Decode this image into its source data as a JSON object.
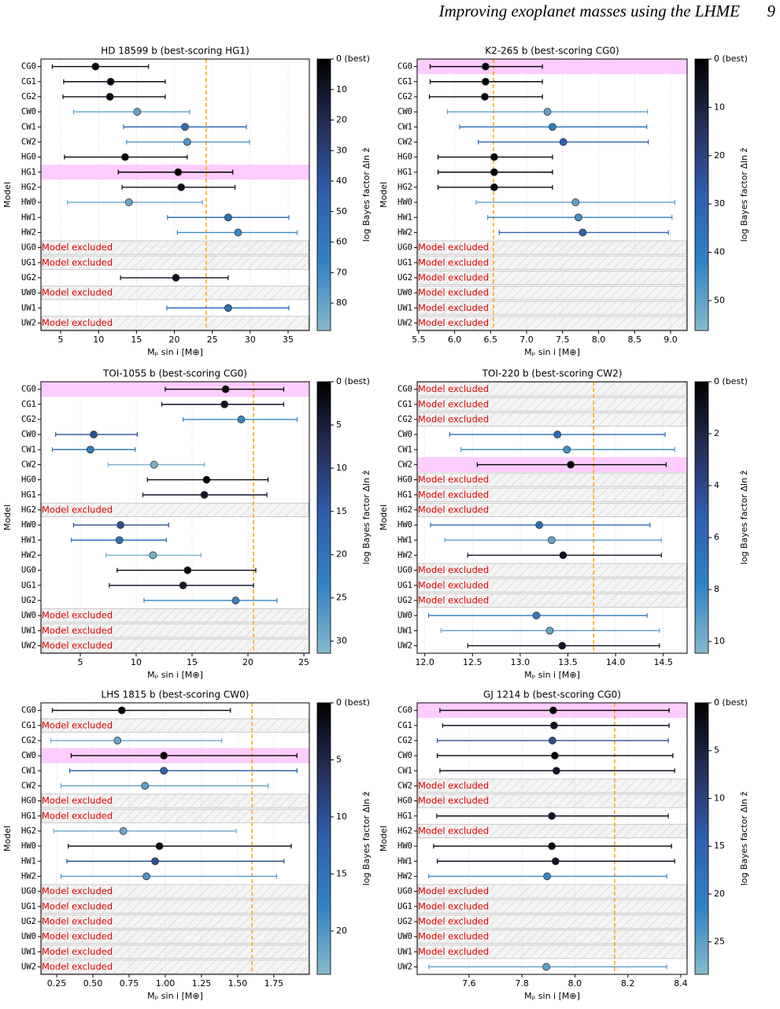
{
  "page_header": {
    "title": "Improving exoplanet masses using the LHME",
    "page_number": "9"
  },
  "chart_data": [
    {
      "type": "errorbar",
      "title": "HD 18599 b (best-scoring HG1)",
      "xlabel": "Mₚ sin i [M⊕]",
      "ylabel": "Model",
      "categories": [
        "CG0",
        "CG1",
        "CG2",
        "CW0",
        "CW1",
        "CW2",
        "HG0",
        "HG1",
        "HG2",
        "HW0",
        "HW1",
        "HW2",
        "UG0",
        "UG1",
        "UG2",
        "UW0",
        "UW1",
        "UW2"
      ],
      "values": [
        9.6,
        11.6,
        11.5,
        15.1,
        21.4,
        21.7,
        13.5,
        20.5,
        20.9,
        14.0,
        27.1,
        28.4,
        null,
        null,
        20.2,
        null,
        27.1,
        null
      ],
      "lower": [
        3.9,
        5.4,
        5.3,
        6.7,
        13.3,
        13.7,
        5.5,
        12.6,
        13.1,
        5.9,
        19.1,
        20.4,
        null,
        null,
        12.9,
        null,
        19.0,
        null
      ],
      "upper": [
        16.6,
        18.8,
        18.8,
        22.0,
        29.5,
        29.9,
        21.7,
        27.7,
        28.0,
        23.7,
        35.1,
        36.2,
        null,
        null,
        27.1,
        null,
        35.1,
        null
      ],
      "bayes": [
        3,
        5,
        5,
        80,
        55,
        75,
        3,
        0,
        5,
        82,
        55,
        70,
        null,
        null,
        8,
        null,
        55,
        null
      ],
      "excluded_label": "Model excluded",
      "best_index": 7,
      "reference": 24.2,
      "xlim": [
        2.4,
        37.8
      ],
      "xticks": [
        5,
        10,
        15,
        20,
        25,
        30,
        35
      ],
      "grid": true,
      "clim": [
        0,
        89
      ],
      "cticks": [
        {
          "value": 0,
          "label": "0 (best)"
        },
        10,
        20,
        30,
        40,
        50,
        60,
        70,
        80
      ],
      "clabel": "log Bayes factor Δln ẑ",
      "colormap": [
        "#000000",
        "#252f5a",
        "#2f5fb0",
        "#3082c4",
        "#86b9cc"
      ],
      "highlight_color": "#ffccff",
      "reference_color": "#ffa500"
    },
    {
      "type": "errorbar",
      "title": "K2-265 b (best-scoring CG0)",
      "xlabel": "Mₚ sin i [M⊕]",
      "ylabel": "Model",
      "categories": [
        "CG0",
        "CG1",
        "CG2",
        "CW0",
        "CW1",
        "CW2",
        "HG0",
        "HG1",
        "HG2",
        "HW0",
        "HW1",
        "HW2",
        "UG0",
        "UG1",
        "UG2",
        "UW0",
        "UW1",
        "UW2"
      ],
      "values": [
        6.43,
        6.43,
        6.42,
        7.29,
        7.36,
        7.51,
        6.55,
        6.55,
        6.55,
        7.68,
        7.72,
        7.78,
        null,
        null,
        null,
        null,
        null,
        null
      ],
      "lower": [
        5.66,
        5.66,
        5.65,
        5.9,
        6.07,
        6.33,
        5.77,
        5.77,
        5.77,
        6.3,
        6.46,
        6.62,
        null,
        null,
        null,
        null,
        null,
        null
      ],
      "upper": [
        7.22,
        7.22,
        7.22,
        8.68,
        8.67,
        8.69,
        7.36,
        7.36,
        7.36,
        9.06,
        9.02,
        8.97,
        null,
        null,
        null,
        null,
        null,
        null
      ],
      "bayes": [
        0,
        2,
        2,
        50,
        40,
        30,
        1,
        1,
        1,
        50,
        45,
        30,
        null,
        null,
        null,
        null,
        null,
        null
      ],
      "excluded_label": "Model excluded",
      "best_index": 0,
      "reference": 6.54,
      "xlim": [
        5.48,
        9.23
      ],
      "xticks": [
        5.5,
        {
          "value": 6,
          "label": "6.0"
        },
        6.5,
        {
          "value": 7,
          "label": "7.0"
        },
        7.5,
        {
          "value": 8,
          "label": "8.0"
        },
        8.5,
        {
          "value": 9,
          "label": "9.0"
        }
      ],
      "grid": true,
      "clim": [
        0,
        56.2
      ],
      "cticks": [
        {
          "value": 0,
          "label": "0 (best)"
        },
        10,
        20,
        30,
        40,
        50
      ],
      "clabel": "log Bayes factor Δln ẑ",
      "colormap": [
        "#000000",
        "#252f5a",
        "#2f5fb0",
        "#3082c4",
        "#86b9cc"
      ],
      "highlight_color": "#ffccff",
      "reference_color": "#ffa500"
    },
    {
      "type": "errorbar",
      "title": "TOI-1055 b (best-scoring CG0)",
      "xlabel": "Mₚ sin i [M⊕]",
      "ylabel": "Model",
      "categories": [
        "CG0",
        "CG1",
        "CG2",
        "CW0",
        "CW1",
        "CW2",
        "HG0",
        "HG1",
        "HG2",
        "HW0",
        "HW1",
        "HW2",
        "UG0",
        "UG1",
        "UG2",
        "UW0",
        "UW1",
        "UW2"
      ],
      "values": [
        18.0,
        17.9,
        19.4,
        6.2,
        5.9,
        11.6,
        16.3,
        16.1,
        null,
        8.6,
        8.5,
        11.5,
        14.6,
        14.2,
        18.9,
        null,
        null,
        null
      ],
      "lower": [
        12.6,
        12.3,
        14.2,
        2.8,
        2.5,
        7.5,
        11.0,
        10.6,
        null,
        4.4,
        4.2,
        7.3,
        8.3,
        7.6,
        10.7,
        null,
        null,
        null
      ],
      "upper": [
        23.2,
        23.2,
        24.4,
        10.1,
        9.9,
        16.1,
        21.8,
        21.7,
        null,
        12.9,
        12.7,
        15.8,
        20.7,
        20.5,
        22.6,
        null,
        null,
        null
      ],
      "bayes": [
        0,
        3,
        24,
        13,
        22,
        30,
        1,
        4,
        null,
        13,
        20,
        30,
        1,
        4,
        24,
        null,
        null,
        null
      ],
      "excluded_label": "Model excluded",
      "best_index": 0,
      "reference": 20.5,
      "xlim": [
        1.48,
        25.49
      ],
      "xticks": [
        5,
        10,
        15,
        20,
        25
      ],
      "grid": true,
      "clim": [
        0,
        31.4
      ],
      "cticks": [
        {
          "value": 0,
          "label": "0 (best)"
        },
        5,
        10,
        15,
        20,
        25,
        30
      ],
      "clabel": "log Bayes factor Δln ẑ",
      "colormap": [
        "#000000",
        "#252f5a",
        "#2f5fb0",
        "#3082c4",
        "#86b9cc"
      ],
      "highlight_color": "#ffccff",
      "reference_color": "#ffa500"
    },
    {
      "type": "errorbar",
      "title": "TOI-220 b (best-scoring CW2)",
      "xlabel": "Mₚ sin i [M⊕]",
      "ylabel": "Model",
      "categories": [
        "CG0",
        "CG1",
        "CG2",
        "CW0",
        "CW1",
        "CW2",
        "HG0",
        "HG1",
        "HG2",
        "HW0",
        "HW1",
        "HW2",
        "UG0",
        "UG1",
        "UG2",
        "UW0",
        "UW1",
        "UW2"
      ],
      "values": [
        null,
        null,
        null,
        13.39,
        13.49,
        13.53,
        null,
        null,
        null,
        13.2,
        13.33,
        13.45,
        null,
        null,
        null,
        13.17,
        13.31,
        13.44
      ],
      "lower": [
        null,
        null,
        null,
        12.26,
        12.38,
        12.55,
        null,
        null,
        null,
        12.06,
        12.21,
        12.45,
        null,
        null,
        null,
        12.04,
        12.17,
        12.45
      ],
      "upper": [
        null,
        null,
        null,
        14.52,
        14.62,
        14.53,
        null,
        null,
        null,
        14.36,
        14.48,
        14.48,
        null,
        null,
        null,
        14.33,
        14.46,
        14.46
      ],
      "bayes": [
        null,
        null,
        null,
        6,
        8.5,
        0,
        null,
        null,
        null,
        6,
        9.5,
        1,
        null,
        null,
        null,
        7,
        9.5,
        1
      ],
      "excluded_label": "Model excluded",
      "best_index": 5,
      "reference": 13.77,
      "xlim": [
        11.92,
        14.75
      ],
      "xticks": [
        {
          "value": 12,
          "label": "12.0"
        },
        12.5,
        {
          "value": 13,
          "label": "13.0"
        },
        13.5,
        {
          "value": 14,
          "label": "14.0"
        },
        14.5
      ],
      "grid": true,
      "clim": [
        0,
        10.45
      ],
      "cticks": [
        {
          "value": 0,
          "label": "0 (best)"
        },
        2,
        4,
        6,
        8,
        10
      ],
      "clabel": "log Bayes factor Δln ẑ",
      "colormap": [
        "#000000",
        "#252f5a",
        "#2f5fb0",
        "#3082c4",
        "#86b9cc"
      ],
      "highlight_color": "#ffccff",
      "reference_color": "#ffa500"
    },
    {
      "type": "errorbar",
      "title": "LHS 1815 b (best-scoring CW0)",
      "xlabel": "Mₚ sin i [M⊕]",
      "ylabel": "Model",
      "categories": [
        "CG0",
        "CG1",
        "CG2",
        "CW0",
        "CW1",
        "CW2",
        "HG0",
        "HG1",
        "HG2",
        "HW0",
        "HW1",
        "HW2",
        "UG0",
        "UG1",
        "UG2",
        "UW0",
        "UW1",
        "UW2"
      ],
      "values": [
        0.7,
        null,
        0.67,
        0.99,
        0.99,
        0.86,
        null,
        null,
        0.71,
        0.96,
        0.93,
        0.87,
        null,
        null,
        null,
        null,
        null,
        null
      ],
      "lower": [
        0.22,
        null,
        0.21,
        0.35,
        0.34,
        0.28,
        null,
        null,
        0.23,
        0.33,
        0.32,
        0.28,
        null,
        null,
        null,
        null,
        null,
        null
      ],
      "upper": [
        1.45,
        null,
        1.39,
        1.91,
        1.91,
        1.71,
        null,
        null,
        1.49,
        1.87,
        1.82,
        1.77,
        null,
        null,
        null,
        null,
        null,
        null
      ],
      "bayes": [
        0.5,
        null,
        22,
        0,
        12,
        21,
        null,
        null,
        22,
        1,
        10,
        20,
        null,
        null,
        null,
        null,
        null,
        null
      ],
      "excluded_label": "Model excluded",
      "best_index": 3,
      "reference": 1.6,
      "xlim": [
        0.141,
        1.995
      ],
      "xticks": [
        0.25,
        {
          "value": 0.5,
          "label": "0.50"
        },
        0.75,
        {
          "value": 1,
          "label": "1.00"
        },
        1.25,
        {
          "value": 1.5,
          "label": "1.50"
        },
        1.75
      ],
      "grid": true,
      "clim": [
        0,
        23.8
      ],
      "cticks": [
        {
          "value": 0,
          "label": "0 (best)"
        },
        5,
        10,
        15,
        20
      ],
      "clabel": "log Bayes factor Δln ẑ",
      "colormap": [
        "#000000",
        "#252f5a",
        "#2f5fb0",
        "#3082c4",
        "#86b9cc"
      ],
      "highlight_color": "#ffccff",
      "reference_color": "#ffa500"
    },
    {
      "type": "errorbar",
      "title": "GJ 1214 b (best-scoring CG0)",
      "xlabel": "Mₚ sin i [M⊕]",
      "ylabel": "Model",
      "categories": [
        "CG0",
        "CG1",
        "CG2",
        "CW0",
        "CW1",
        "CW2",
        "HG0",
        "HG1",
        "HG2",
        "HW0",
        "HW1",
        "HW2",
        "UG0",
        "UG1",
        "UG2",
        "UW0",
        "UW1",
        "UW2"
      ],
      "values": [
        7.918,
        7.921,
        7.915,
        7.924,
        7.93,
        null,
        null,
        7.913,
        null,
        7.913,
        7.927,
        7.895,
        null,
        null,
        null,
        null,
        null,
        7.892
      ],
      "lower": [
        7.49,
        7.5,
        7.48,
        7.48,
        7.49,
        null,
        null,
        7.478,
        null,
        7.466,
        7.48,
        7.448,
        null,
        null,
        null,
        null,
        null,
        7.448
      ],
      "upper": [
        8.356,
        8.356,
        8.353,
        8.37,
        8.377,
        null,
        null,
        8.353,
        null,
        8.365,
        8.377,
        8.347,
        null,
        null,
        null,
        null,
        null,
        8.347
      ],
      "bayes": [
        0,
        3,
        12,
        0.5,
        3,
        null,
        null,
        3,
        null,
        0.5,
        3,
        22,
        null,
        null,
        null,
        null,
        null,
        25
      ],
      "excluded_label": "Model excluded",
      "best_index": 0,
      "reference": 8.15,
      "xlim": [
        7.404,
        8.424
      ],
      "xticks": [
        7.6,
        7.8,
        {
          "value": 8,
          "label": "8.0"
        },
        8.2,
        8.4
      ],
      "grid": true,
      "clim": [
        0,
        28.4
      ],
      "cticks": [
        {
          "value": 0,
          "label": "0 (best)"
        },
        5,
        10,
        15,
        20,
        25
      ],
      "clabel": "log Bayes factor Δln ẑ",
      "colormap": [
        "#000000",
        "#252f5a",
        "#2f5fb0",
        "#3082c4",
        "#86b9cc"
      ],
      "highlight_color": "#ffccff",
      "reference_color": "#ffa500"
    }
  ]
}
